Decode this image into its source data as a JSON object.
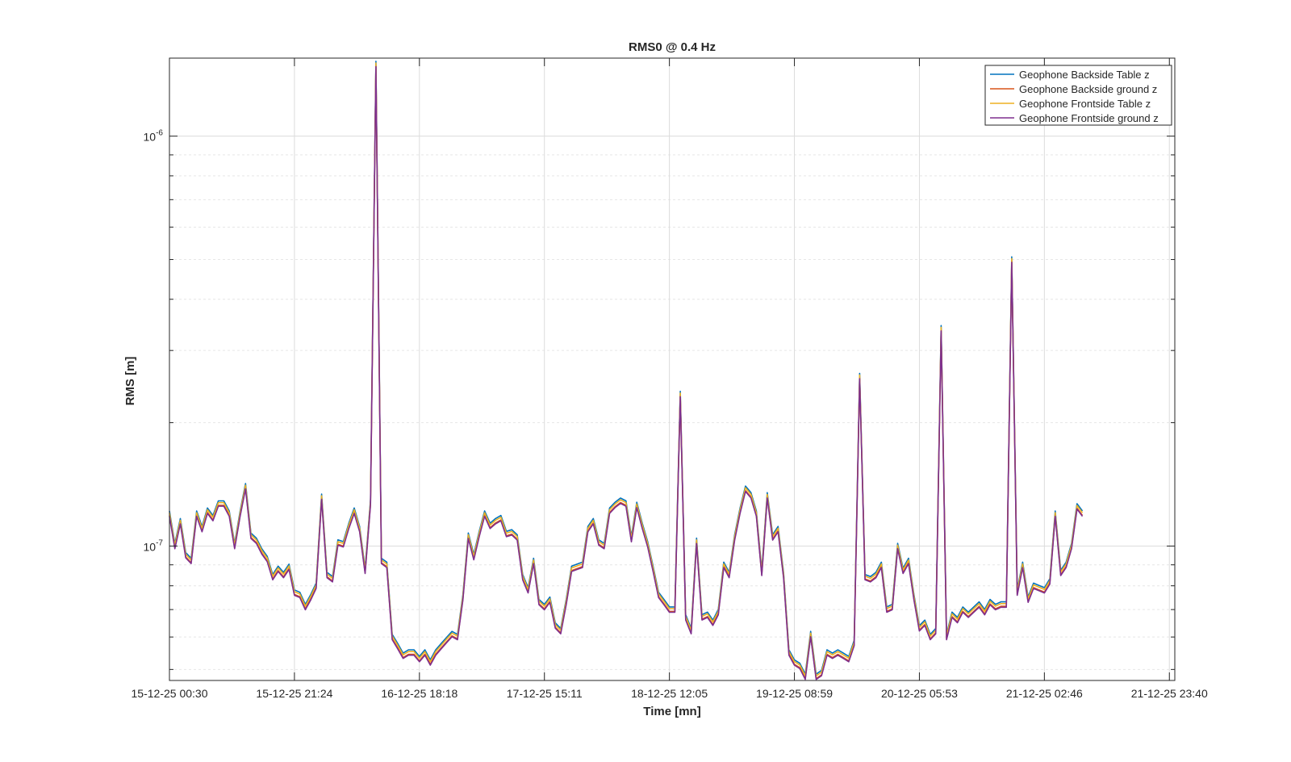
{
  "chart_data": {
    "type": "line",
    "title": "RMS0 @ 0.4 Hz",
    "xlabel": "Time [mn]",
    "ylabel": "RMS [m]",
    "yscale": "log",
    "ylim": [
      4.7e-08,
      1.55e-06
    ],
    "xlim": [
      0,
      185
    ],
    "grid": true,
    "legend_position": "top-right",
    "x_ticks": [
      {
        "pos": 0,
        "label": "15-12-25 00:30"
      },
      {
        "pos": 23,
        "label": "15-12-25 21:24"
      },
      {
        "pos": 46,
        "label": "16-12-25 18:18"
      },
      {
        "pos": 69,
        "label": "17-12-25 15:11"
      },
      {
        "pos": 92,
        "label": "18-12-25 12:05"
      },
      {
        "pos": 115,
        "label": "19-12-25 08:59"
      },
      {
        "pos": 138,
        "label": "20-12-25 05:53"
      },
      {
        "pos": 161,
        "label": "21-12-25 02:46"
      },
      {
        "pos": 184,
        "label": "21-12-25 23:40"
      }
    ],
    "y_ticks": [
      {
        "value": 1e-07,
        "base": "10",
        "exp": "-7"
      },
      {
        "value": 1e-06,
        "base": "10",
        "exp": "-6"
      }
    ],
    "series": [
      {
        "name": "Geophone Backside Table z",
        "color": "#0072BD",
        "offset": 1.015
      },
      {
        "name": "Geophone Backside ground z",
        "color": "#D95319",
        "offset": 0.99
      },
      {
        "name": "Geophone Frontside Table z",
        "color": "#EDB120",
        "offset": 1.005
      },
      {
        "name": "Geophone Frontside ground z",
        "color": "#7E2F8E",
        "offset": 0.985
      }
    ],
    "base_values": [
      1.2e-07,
      1e-07,
      1.15e-07,
      9.5e-08,
      9.2e-08,
      1.2e-07,
      1.1e-07,
      1.22e-07,
      1.17e-07,
      1.27e-07,
      1.27e-07,
      1.2e-07,
      1e-07,
      1.2e-07,
      1.4e-07,
      1.06e-07,
      1.03e-07,
      9.7e-08,
      9.3e-08,
      8.4e-08,
      8.8e-08,
      8.5e-08,
      8.9e-08,
      7.7e-08,
      7.6e-08,
      7.1e-08,
      7.5e-08,
      8e-08,
      1.32e-07,
      8.5e-08,
      8.3e-08,
      1.02e-07,
      1.01e-07,
      1.12e-07,
      1.22e-07,
      1.1e-07,
      8.7e-08,
      1.28e-07,
      1.5e-06,
      9.2e-08,
      9e-08,
      6e-08,
      5.7e-08,
      5.4e-08,
      5.5e-08,
      5.5e-08,
      5.3e-08,
      5.5e-08,
      5.2e-08,
      5.5e-08,
      5.7e-08,
      5.9e-08,
      6.1e-08,
      6e-08,
      7.5e-08,
      1.06e-07,
      9.4e-08,
      1.07e-07,
      1.2e-07,
      1.12e-07,
      1.15e-07,
      1.17e-07,
      1.07e-07,
      1.08e-07,
      1.05e-07,
      8.4e-08,
      7.8e-08,
      9.2e-08,
      7.3e-08,
      7.1e-08,
      7.4e-08,
      6.4e-08,
      6.2e-08,
      7.3e-08,
      8.8e-08,
      8.9e-08,
      9e-08,
      1.1e-07,
      1.15e-07,
      1.02e-07,
      1e-07,
      1.22e-07,
      1.26e-07,
      1.29e-07,
      1.27e-07,
      1.04e-07,
      1.26e-07,
      1.12e-07,
      1.01e-07,
      8.8e-08,
      7.6e-08,
      7.3e-08,
      7e-08,
      7e-08,
      2.35e-07,
      6.7e-08,
      6.2e-08,
      1.03e-07,
      6.7e-08,
      6.8e-08,
      6.5e-08,
      6.9e-08,
      9e-08,
      8.5e-08,
      1.05e-07,
      1.22e-07,
      1.38e-07,
      1.33e-07,
      1.2e-07,
      8.6e-08,
      1.33e-07,
      1.05e-07,
      1.1e-07,
      8.5e-08,
      5.5e-08,
      5.2e-08,
      5.1e-08,
      4.8e-08,
      6.1e-08,
      4.8e-08,
      4.9e-08,
      5.5e-08,
      5.4e-08,
      5.5e-08,
      5.4e-08,
      5.3e-08,
      5.8e-08,
      2.6e-07,
      8.4e-08,
      8.3e-08,
      8.5e-08,
      9e-08,
      7e-08,
      7.1e-08,
      1e-07,
      8.7e-08,
      9.2e-08,
      7.5e-08,
      6.3e-08,
      6.5e-08,
      6e-08,
      6.2e-08,
      3.4e-07,
      6e-08,
      6.8e-08,
      6.6e-08,
      7e-08,
      6.8e-08,
      7e-08,
      7.2e-08,
      6.9e-08,
      7.3e-08,
      7.1e-08,
      7.2e-08,
      7.2e-08,
      5e-07,
      7.7e-08,
      9e-08,
      7.4e-08,
      8e-08,
      7.9e-08,
      7.8e-08,
      8.2e-08,
      1.2e-07,
      8.6e-08,
      9e-08,
      1e-07,
      1.25e-07,
      1.2e-07
    ]
  }
}
